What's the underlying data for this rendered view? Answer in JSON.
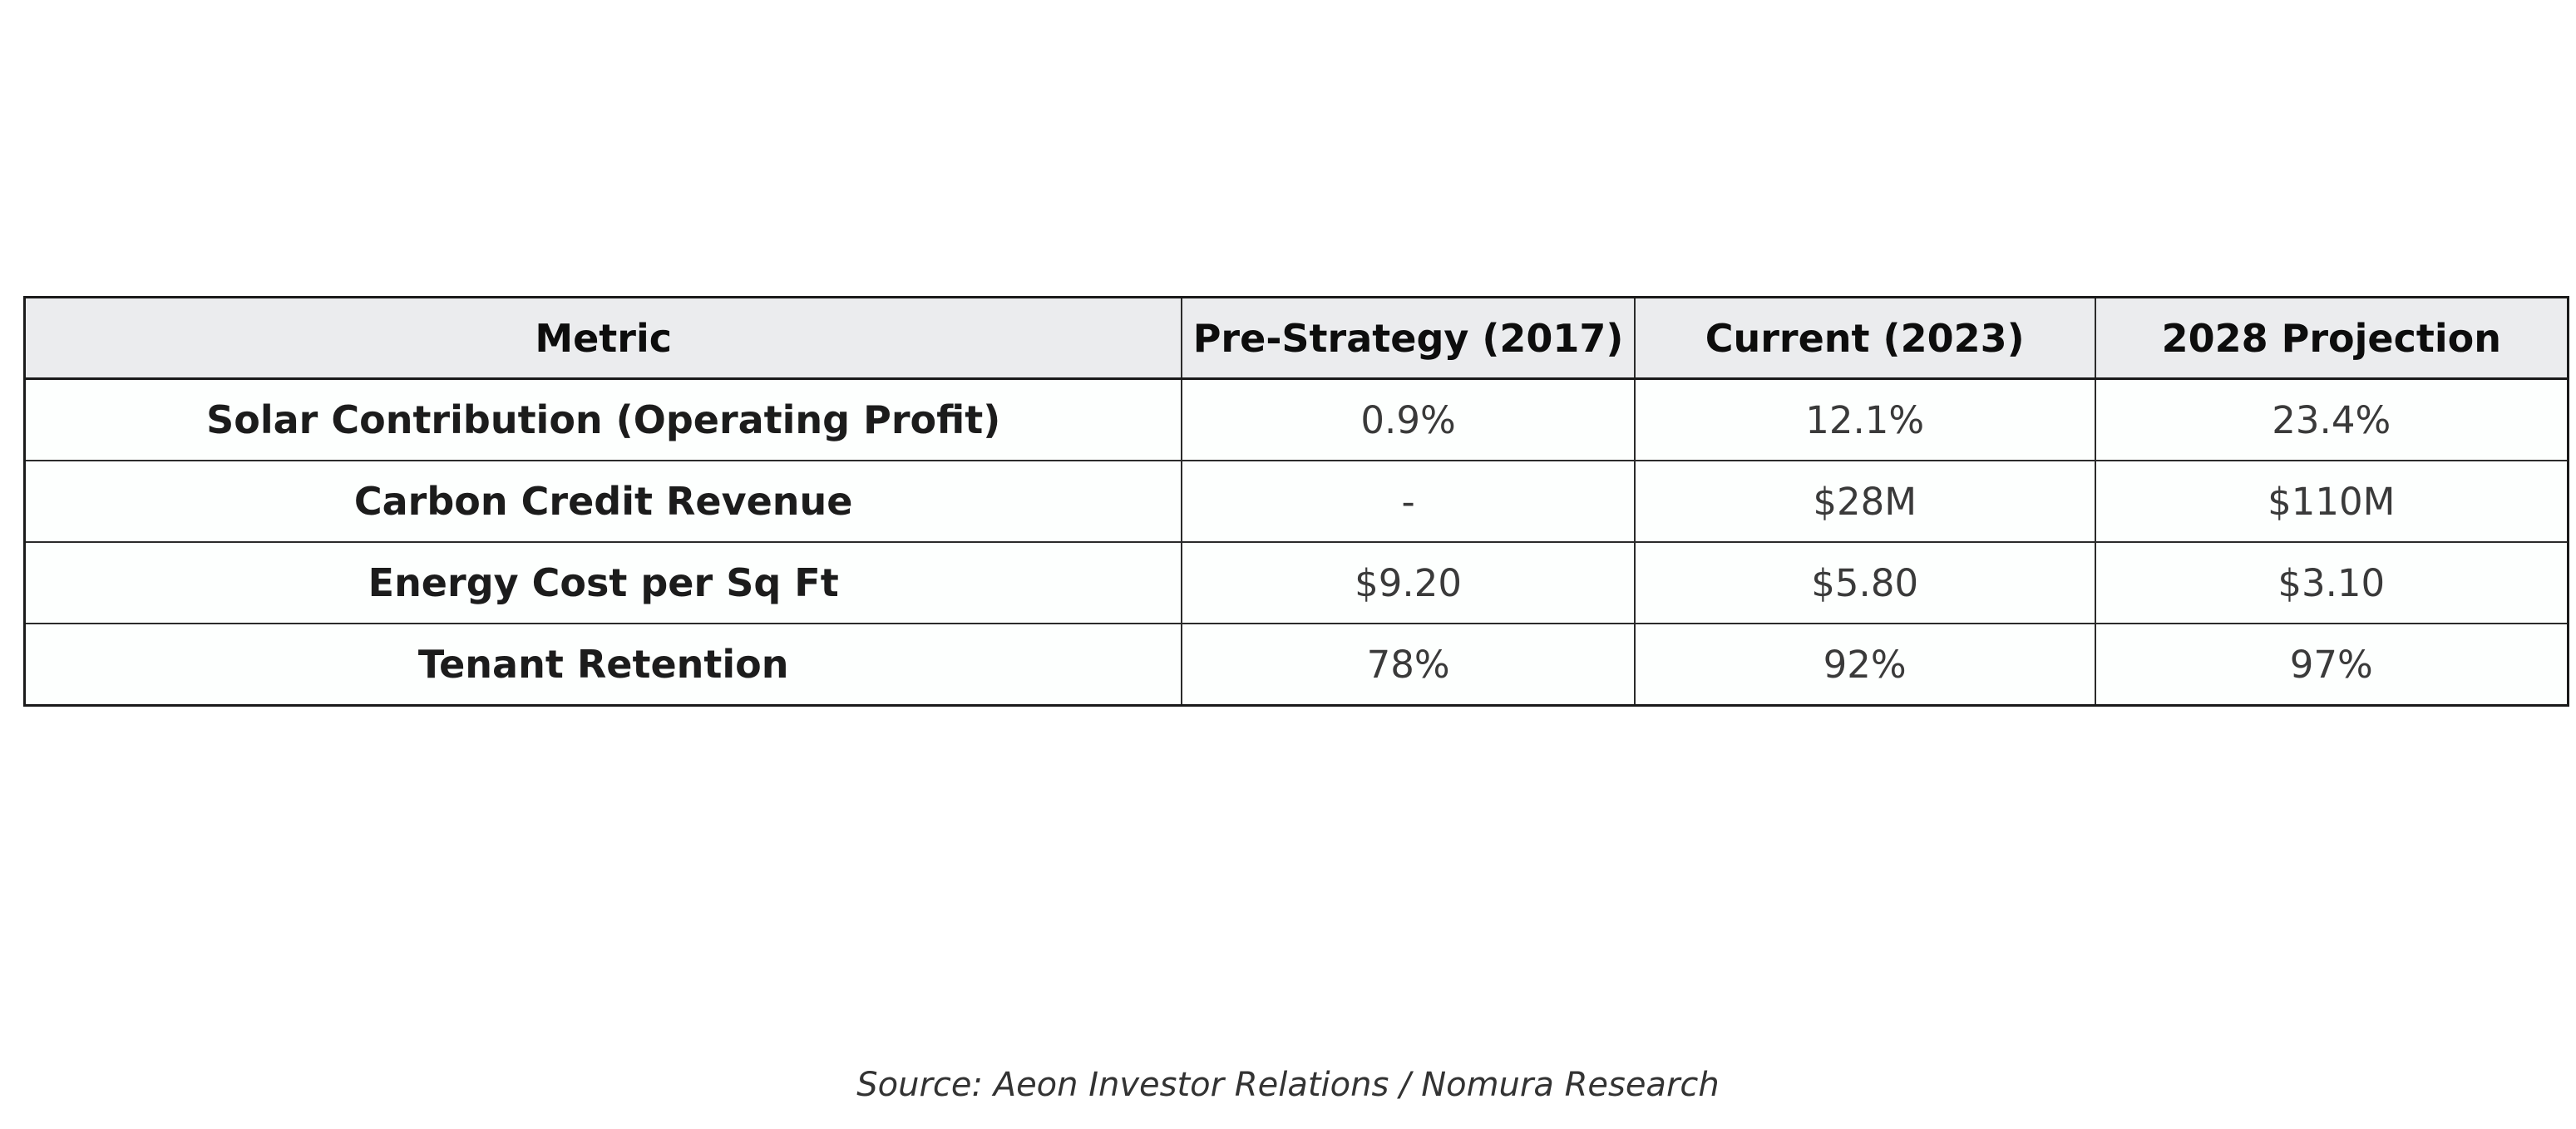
{
  "chart_data": {
    "type": "table",
    "columns": [
      "Metric",
      "Pre-Strategy (2017)",
      "Current (2023)",
      "2028 Projection"
    ],
    "rows": [
      {
        "metric": "Solar Contribution (Operating Profit)",
        "values": [
          "0.9%",
          "12.1%",
          "23.4%"
        ]
      },
      {
        "metric": "Carbon Credit Revenue",
        "values": [
          "-",
          "$28M",
          "$110M"
        ]
      },
      {
        "metric": "Energy Cost per Sq Ft",
        "values": [
          "$9.20",
          "$5.80",
          "$3.10"
        ]
      },
      {
        "metric": "Tenant Retention",
        "values": [
          "78%",
          "92%",
          "97%"
        ]
      }
    ],
    "title": "",
    "legend": null,
    "source_note": "Source: Aeon Investor Relations / Nomura Research"
  },
  "styles": {
    "header_bg": "#ebecee",
    "body_bg": "#fdfffe",
    "frame_color": "#1a1a1a",
    "grid_color": "#2b2b2b"
  },
  "footer": {
    "source": "Source: Aeon Investor Relations / Nomura Research"
  }
}
